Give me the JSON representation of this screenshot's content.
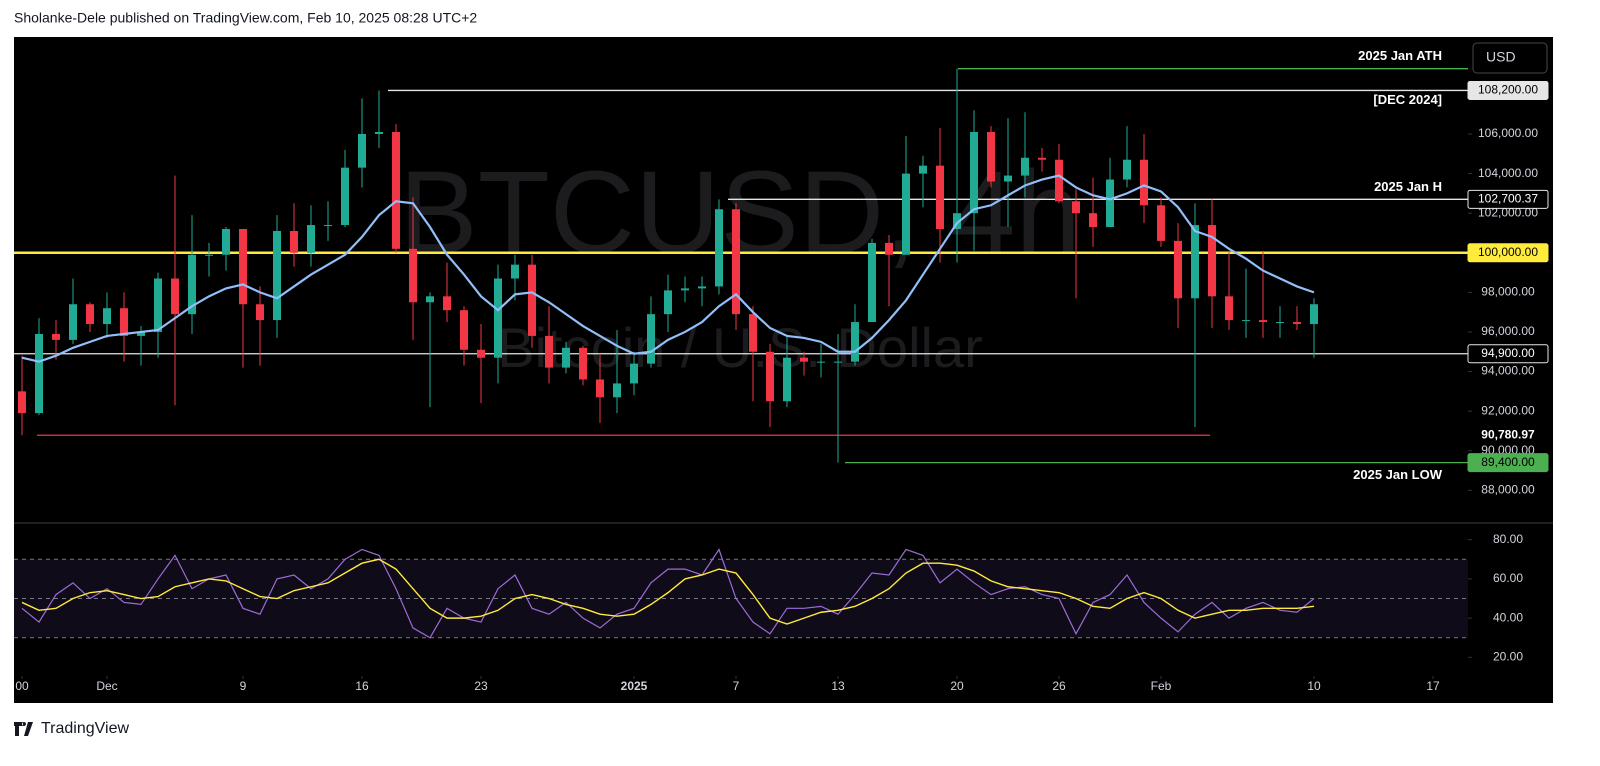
{
  "header": "Sholanke-Dele published on TradingView.com, Feb 10, 2025 08:28 UTC+2",
  "footer": "TradingView",
  "chart_data": {
    "type": "candlestick",
    "currency": "USD",
    "watermark": "BTCUSD, 4h",
    "watermark_subtitle": "Bitcoin / U.S. Dollar",
    "up_color": "#22ab94",
    "down_color": "#f23645",
    "x": [
      "11-26",
      "11-27",
      "11-28",
      "11-29",
      "11-30",
      "12-01",
      "12-02",
      "12-03",
      "12-04",
      "12-05",
      "12-06",
      "12-07",
      "12-08",
      "12-09",
      "12-10",
      "12-11",
      "12-12",
      "12-13",
      "12-14",
      "12-15",
      "12-16",
      "12-17",
      "12-18",
      "12-19",
      "12-20",
      "12-21",
      "12-22",
      "12-23",
      "12-24",
      "12-25",
      "12-26",
      "12-27",
      "12-28",
      "12-29",
      "12-30",
      "12-31",
      "01-01",
      "01-02",
      "01-03",
      "01-04",
      "01-05",
      "01-06",
      "01-07",
      "01-08",
      "01-09",
      "01-10",
      "01-11",
      "01-12",
      "01-13",
      "01-14",
      "01-15",
      "01-16",
      "01-17",
      "01-18",
      "01-19",
      "01-20",
      "01-21",
      "01-22",
      "01-23",
      "01-24",
      "01-25",
      "01-26",
      "01-27",
      "01-28",
      "01-29",
      "01-30",
      "01-31",
      "02-01",
      "02-02",
      "02-03",
      "02-04",
      "02-05",
      "02-06",
      "02-07",
      "02-08",
      "02-09",
      "02-10"
    ],
    "ohlc": [
      [
        93000,
        94800,
        90780,
        91900
      ],
      [
        91900,
        96700,
        91800,
        95900
      ],
      [
        95900,
        96600,
        94600,
        95600
      ],
      [
        95600,
        98700,
        95400,
        97400
      ],
      [
        97400,
        97500,
        96000,
        96400
      ],
      [
        96400,
        98000,
        95700,
        97200
      ],
      [
        97200,
        98000,
        94500,
        95800
      ],
      [
        95800,
        96300,
        94300,
        96000
      ],
      [
        96000,
        99000,
        94700,
        98700
      ],
      [
        98700,
        103900,
        92300,
        96900
      ],
      [
        96900,
        101900,
        95900,
        99900
      ],
      [
        99900,
        100500,
        98800,
        99900
      ],
      [
        99900,
        101300,
        99100,
        101200
      ],
      [
        101200,
        101200,
        94200,
        97400
      ],
      [
        97400,
        98300,
        94300,
        96600
      ],
      [
        96600,
        101900,
        95700,
        101100
      ],
      [
        101100,
        102500,
        99300,
        100000
      ],
      [
        100000,
        102400,
        99300,
        101400
      ],
      [
        101400,
        102600,
        100600,
        101400
      ],
      [
        101400,
        105200,
        101300,
        104300
      ],
      [
        104300,
        107800,
        103300,
        106000
      ],
      [
        106000,
        108200,
        105300,
        106100
      ],
      [
        106100,
        106500,
        100000,
        100200
      ],
      [
        100200,
        102800,
        95600,
        97500
      ],
      [
        97500,
        98000,
        92200,
        97800
      ],
      [
        97800,
        99500,
        96500,
        97100
      ],
      [
        97100,
        97300,
        94300,
        95100
      ],
      [
        95100,
        96400,
        92400,
        94700
      ],
      [
        94700,
        99400,
        93400,
        98700
      ],
      [
        98700,
        99900,
        97600,
        99400
      ],
      [
        99400,
        99900,
        95200,
        95800
      ],
      [
        95800,
        97300,
        93400,
        94200
      ],
      [
        94200,
        95500,
        93900,
        95200
      ],
      [
        95200,
        95300,
        93300,
        93600
      ],
      [
        93600,
        94900,
        91400,
        92700
      ],
      [
        92700,
        96100,
        91900,
        93400
      ],
      [
        93400,
        95000,
        92800,
        94400
      ],
      [
        94400,
        97800,
        94200,
        96900
      ],
      [
        96900,
        98900,
        96000,
        98100
      ],
      [
        98100,
        98800,
        97500,
        98200
      ],
      [
        98200,
        98800,
        97300,
        98300
      ],
      [
        98300,
        102700,
        97900,
        102200
      ],
      [
        102200,
        102500,
        96100,
        96900
      ],
      [
        96900,
        97300,
        92500,
        95000
      ],
      [
        95000,
        95400,
        91200,
        92500
      ],
      [
        92500,
        95800,
        92200,
        94700
      ],
      [
        94700,
        95000,
        93800,
        94500
      ],
      [
        94500,
        95400,
        93700,
        94500
      ],
      [
        94500,
        95900,
        89400,
        94500
      ],
      [
        94500,
        97400,
        94300,
        96500
      ],
      [
        96500,
        100700,
        96500,
        100500
      ],
      [
        100500,
        100900,
        97300,
        99900
      ],
      [
        99900,
        105900,
        99900,
        104000
      ],
      [
        104000,
        104900,
        102300,
        104400
      ],
      [
        104400,
        106300,
        99500,
        101200
      ],
      [
        101200,
        109300,
        99500,
        102000
      ],
      [
        102000,
        107200,
        100100,
        106100
      ],
      [
        106100,
        106400,
        103300,
        103600
      ],
      [
        103600,
        106800,
        101300,
        103900
      ],
      [
        103900,
        107100,
        102800,
        104800
      ],
      [
        104800,
        105300,
        104100,
        104700
      ],
      [
        104700,
        105500,
        102500,
        102600
      ],
      [
        102600,
        103200,
        97700,
        102000
      ],
      [
        102000,
        103800,
        100300,
        101300
      ],
      [
        101300,
        104800,
        101300,
        103700
      ],
      [
        103700,
        106400,
        103300,
        104700
      ],
      [
        104700,
        106000,
        101500,
        102400
      ],
      [
        102400,
        102800,
        100300,
        100600
      ],
      [
        100600,
        101500,
        96200,
        97700
      ],
      [
        97700,
        102500,
        91200,
        101400
      ],
      [
        101400,
        102700,
        96200,
        97800
      ],
      [
        97800,
        100100,
        96100,
        96600
      ],
      [
        96600,
        99200,
        95700,
        96600
      ],
      [
        96600,
        100100,
        95700,
        96500
      ],
      [
        96500,
        97300,
        95700,
        96500
      ],
      [
        96500,
        97300,
        96100,
        96400
      ],
      [
        96400,
        97700,
        94700,
        97400
      ]
    ],
    "price_ma": {
      "color": "#90bff9",
      "values": [
        94700,
        94500,
        94800,
        95200,
        95500,
        95800,
        95900,
        96000,
        96100,
        96700,
        97300,
        97800,
        98200,
        98400,
        98000,
        97700,
        98300,
        98900,
        99400,
        99900,
        100800,
        101900,
        102600,
        102500,
        101300,
        99900,
        98900,
        97800,
        97100,
        97900,
        98000,
        97500,
        96900,
        96300,
        95800,
        95300,
        94900,
        95000,
        95600,
        96000,
        96500,
        97300,
        97900,
        97000,
        96200,
        95800,
        95700,
        95500,
        95000,
        95000,
        95700,
        96600,
        97600,
        98900,
        100200,
        101500,
        102200,
        102400,
        102900,
        103400,
        103700,
        103900,
        103300,
        102900,
        102700,
        103000,
        103400,
        103100,
        102300,
        101100,
        100800,
        100200,
        99700,
        99100,
        98700,
        98300,
        98000
      ]
    },
    "ylim": [
      86400,
      110900
    ],
    "yticks": [
      {
        "value": 88000,
        "label": "88,000.00"
      },
      {
        "value": 90000,
        "label": "90,000.00"
      },
      {
        "value": 92000,
        "label": "92,000.00"
      },
      {
        "value": 94000,
        "label": "94,000.00"
      },
      {
        "value": 96000,
        "label": "96,000.00"
      },
      {
        "value": 98000,
        "label": "98,000.00"
      },
      {
        "value": 100000,
        "label": "100,000.00"
      },
      {
        "value": 102000,
        "label": "102,000.00"
      },
      {
        "value": 104000,
        "label": "104,000.00"
      },
      {
        "value": 106000,
        "label": "106,000.00"
      }
    ],
    "xticks": [
      {
        "value": "11-26",
        "label": "00"
      },
      {
        "value": "12-01",
        "label": "Dec"
      },
      {
        "value": "12-09",
        "label": "9"
      },
      {
        "value": "12-16",
        "label": "16"
      },
      {
        "value": "12-23",
        "label": "23"
      },
      {
        "value": "01-01",
        "label": "2025"
      },
      {
        "value": "01-07",
        "label": "7"
      },
      {
        "value": "01-13",
        "label": "13"
      },
      {
        "value": "01-20",
        "label": "20"
      },
      {
        "value": "01-26",
        "label": "26"
      },
      {
        "value": "02-01",
        "label": "Feb"
      },
      {
        "value": "02-10",
        "label": "10"
      },
      {
        "value": "02-17",
        "label": "17"
      }
    ],
    "levels": [
      {
        "value": 109300,
        "color": "#4caf50",
        "note": "2025 Jan ATH"
      },
      {
        "value": 108200,
        "price_label": "108,200.00",
        "color": "#e6e6e6",
        "note": "[DEC 2024]"
      },
      {
        "value": 102700.37,
        "price_label": "102,700.37",
        "color": "#e6e6e6",
        "note": "2025 Jan H"
      },
      {
        "value": 100000,
        "price_label": "100,000.00",
        "color": "#ffeb3b"
      },
      {
        "value": 94900,
        "price_label": "94,900.00",
        "color": "#e6e6e6"
      },
      {
        "value": 90780.97,
        "price_label": "90,780.97",
        "color": "#f23645"
      },
      {
        "value": 89400,
        "price_label": "89,400.00",
        "color": "#4caf50",
        "note": "2025 Jan LOW"
      }
    ],
    "rsi": {
      "color": "#9c6cd8",
      "values": [
        45,
        38,
        52,
        58,
        50,
        55,
        48,
        47,
        60,
        72,
        55,
        60,
        62,
        45,
        42,
        60,
        62,
        55,
        60,
        70,
        75,
        72,
        55,
        35,
        30,
        45,
        40,
        38,
        55,
        62,
        45,
        42,
        48,
        40,
        35,
        42,
        45,
        58,
        65,
        65,
        62,
        75,
        50,
        38,
        32,
        45,
        45,
        46,
        42,
        52,
        63,
        62,
        75,
        72,
        58,
        65,
        58,
        52,
        55,
        56,
        52,
        50,
        32,
        48,
        52,
        62,
        48,
        40,
        33,
        42,
        48,
        40,
        45,
        48,
        44,
        43,
        50
      ]
    },
    "rsi_ma": {
      "color": "#ffeb3b",
      "values": [
        48,
        44,
        45,
        50,
        53,
        54,
        52,
        50,
        51,
        56,
        58,
        60,
        59,
        55,
        51,
        50,
        54,
        56,
        58,
        63,
        68,
        70,
        65,
        55,
        45,
        40,
        40,
        41,
        44,
        50,
        52,
        50,
        47,
        45,
        42,
        41,
        42,
        47,
        53,
        60,
        62,
        65,
        63,
        52,
        40,
        37,
        40,
        43,
        44,
        46,
        50,
        55,
        63,
        68,
        68,
        67,
        64,
        59,
        56,
        55,
        54,
        53,
        50,
        46,
        45,
        50,
        53,
        50,
        44,
        40,
        42,
        44,
        44,
        45,
        45,
        45,
        46
      ]
    },
    "rsi_bands": [
      70,
      50,
      30
    ],
    "rsi_ylim": [
      11,
      88
    ],
    "rsi_yticks": [
      {
        "value": 20,
        "label": "20.00"
      },
      {
        "value": 40,
        "label": "40.00"
      },
      {
        "value": 60,
        "label": "60.00"
      },
      {
        "value": 80,
        "label": "80.00"
      }
    ]
  }
}
